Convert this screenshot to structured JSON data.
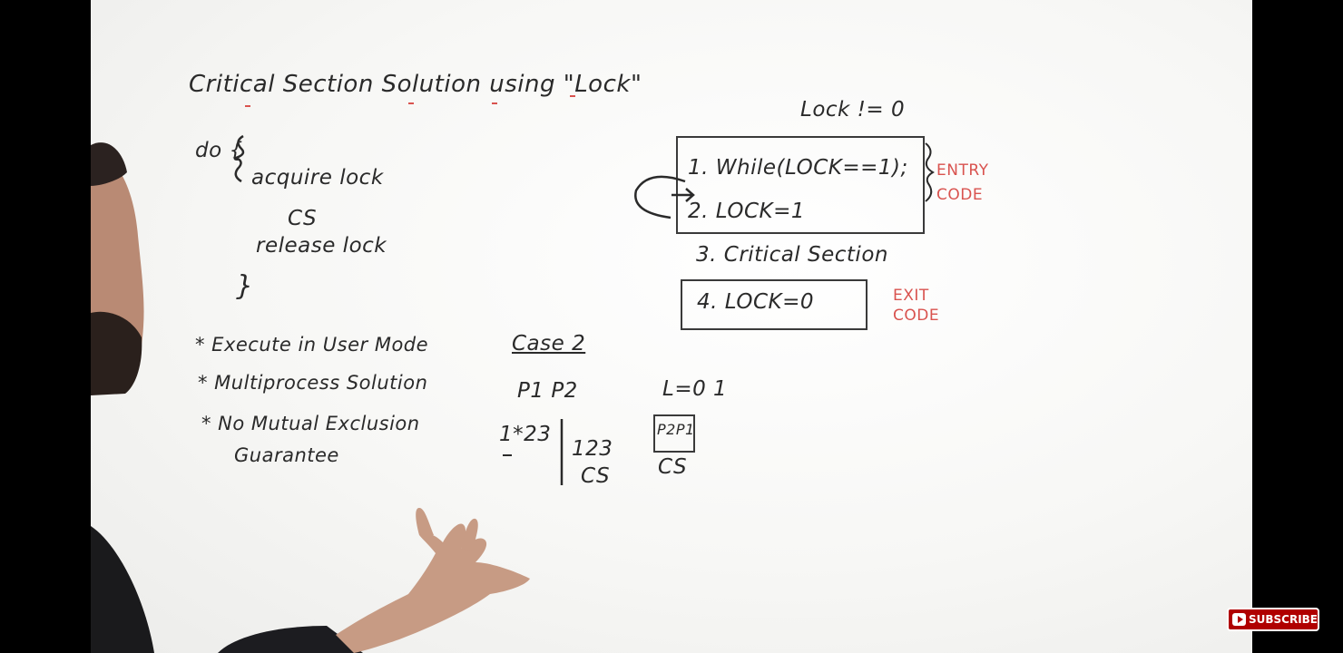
{
  "whiteboard": {
    "title": "Critical Section Solution using \"Lock\"",
    "code": {
      "do_line": "do {",
      "acquire": "acquire lock",
      "cs": "CS",
      "release": "release lock",
      "close": "}"
    },
    "bullets": [
      "* Execute in User Mode",
      "* Multiprocess Solution",
      "* No Mutual Exclusion"
    ],
    "bullet_continuation": "Guarantee",
    "condition": "Lock != 0",
    "entry_lines": [
      "1.  While(LOCK==1);",
      "2.  LOCK=1"
    ],
    "entry_label": [
      "ENTRY",
      "CODE"
    ],
    "critical_line": "3.   Critical Section",
    "exit_line": "4.  LOCK=0",
    "exit_label": [
      "EXIT",
      "CODE"
    ],
    "case": {
      "heading": "Case 2",
      "processes": "P1   P2",
      "lock_value": "L=0 1",
      "p1_steps": "1*23",
      "p2_steps": "123",
      "p2_cs": "CS",
      "boxed": "P2P1",
      "boxed_cs": "CS"
    }
  },
  "overlay": {
    "subscribe_label": "SUBSCRIBE"
  },
  "colors": {
    "ink": "#2a2a2a",
    "red_ink": "#d9534f",
    "subscribe_red": "#b00000"
  }
}
